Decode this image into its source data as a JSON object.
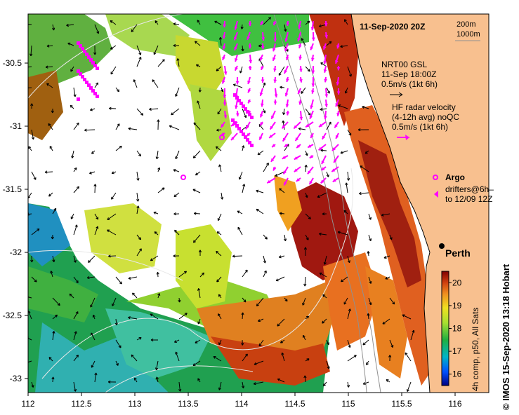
{
  "header": {
    "date": "11-Sep-2020 20Z",
    "contours": [
      "200m",
      "1000m"
    ]
  },
  "legend": {
    "gsl_title": "NRT00 GSL",
    "gsl_time": "11-Sep 18:00Z",
    "gsl_scale": "0.5m/s (1kt 6h)",
    "hf_title": "HF radar velocity",
    "hf_sub": "(4-12h avg) noQC",
    "hf_scale": "0.5m/s (1kt 6h)",
    "argo": "Argo",
    "drifters_1": "drifters@6h–",
    "drifters_2": "to 12/09 12Z",
    "colors": {
      "land": "#f8c08f",
      "hf_vectors": "#ff00ff",
      "argo": "#ff00ff"
    }
  },
  "place": {
    "name": "Perth",
    "lon": 115.86,
    "lat": -31.95
  },
  "axes": {
    "x_ticks": [
      "112",
      "112.5",
      "113",
      "113.5",
      "114",
      "114.5",
      "115",
      "115.5",
      "116"
    ],
    "y_ticks": [
      "-30.5",
      "-31",
      "-31.5",
      "-32",
      "-32.5",
      "-33"
    ],
    "xlim": [
      112,
      116.3
    ],
    "ylim": [
      -33.1,
      -30.1
    ]
  },
  "colorbar": {
    "ticks": [
      "20",
      "19",
      "18",
      "17",
      "16"
    ],
    "label": "4h comp, p50, All Sats",
    "range": [
      15.5,
      20.5
    ]
  },
  "credit": "©  IMOS 15-Sep-2020 13:18 Hobart"
}
